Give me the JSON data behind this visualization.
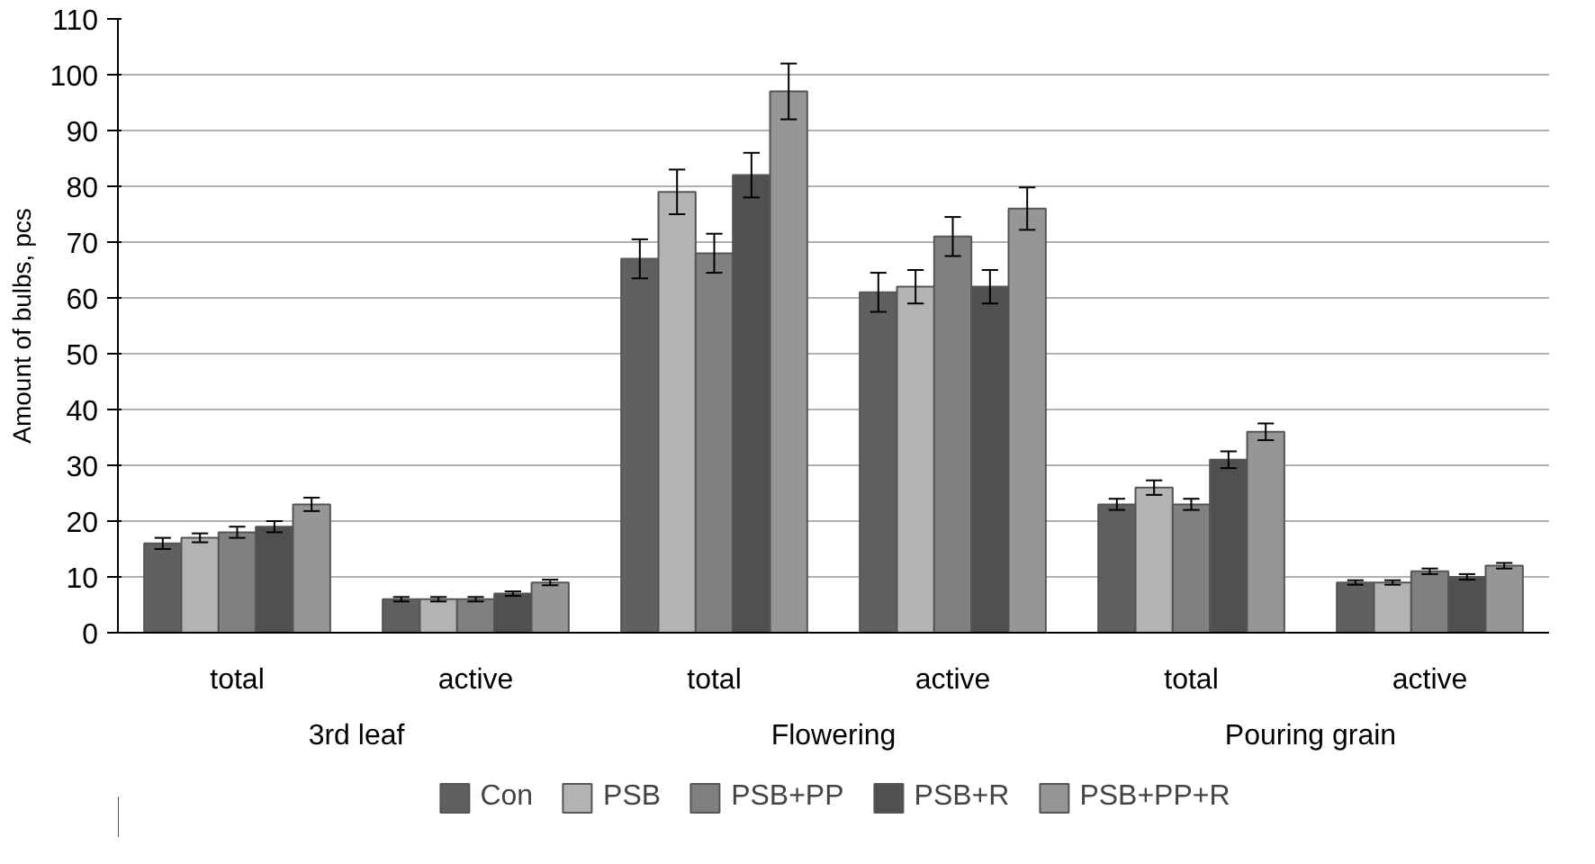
{
  "chart_data": {
    "type": "bar",
    "ylabel": "Amount of bulbs, pcs",
    "categories": [
      "total",
      "active",
      "total",
      "active",
      "total",
      "active"
    ],
    "annotations": [
      "3rd leaf",
      "Flowering",
      "Pouring grain"
    ],
    "series": [
      {
        "name": "Con",
        "color": "#606060",
        "values": [
          16,
          6,
          67,
          61,
          23,
          9
        ],
        "errors": [
          1,
          0.4,
          3.5,
          3.5,
          1,
          0.4
        ]
      },
      {
        "name": "PSB",
        "color": "#b3b3b3",
        "values": [
          17,
          6,
          79,
          62,
          26,
          9
        ],
        "errors": [
          0.8,
          0.4,
          4,
          3,
          1.3,
          0.4
        ]
      },
      {
        "name": "PSB+PP",
        "color": "#808080",
        "values": [
          18,
          6,
          68,
          71,
          23,
          11
        ],
        "errors": [
          1,
          0.4,
          3.5,
          3.5,
          1,
          0.5
        ]
      },
      {
        "name": "PSB+R",
        "color": "#505050",
        "values": [
          19,
          7,
          82,
          62,
          31,
          10
        ],
        "errors": [
          1,
          0.4,
          4,
          3,
          1.5,
          0.5
        ]
      },
      {
        "name": "PSB+PP+R",
        "color": "#969696",
        "values": [
          23,
          9,
          97,
          76,
          36,
          12
        ],
        "errors": [
          1.2,
          0.5,
          5,
          3.8,
          1.5,
          0.5
        ]
      }
    ],
    "ylim": [
      0,
      110
    ],
    "yticks": [
      0,
      10,
      20,
      30,
      40,
      50,
      60,
      70,
      80,
      90,
      100,
      110
    ],
    "grid": "y",
    "legend": "bottom"
  }
}
